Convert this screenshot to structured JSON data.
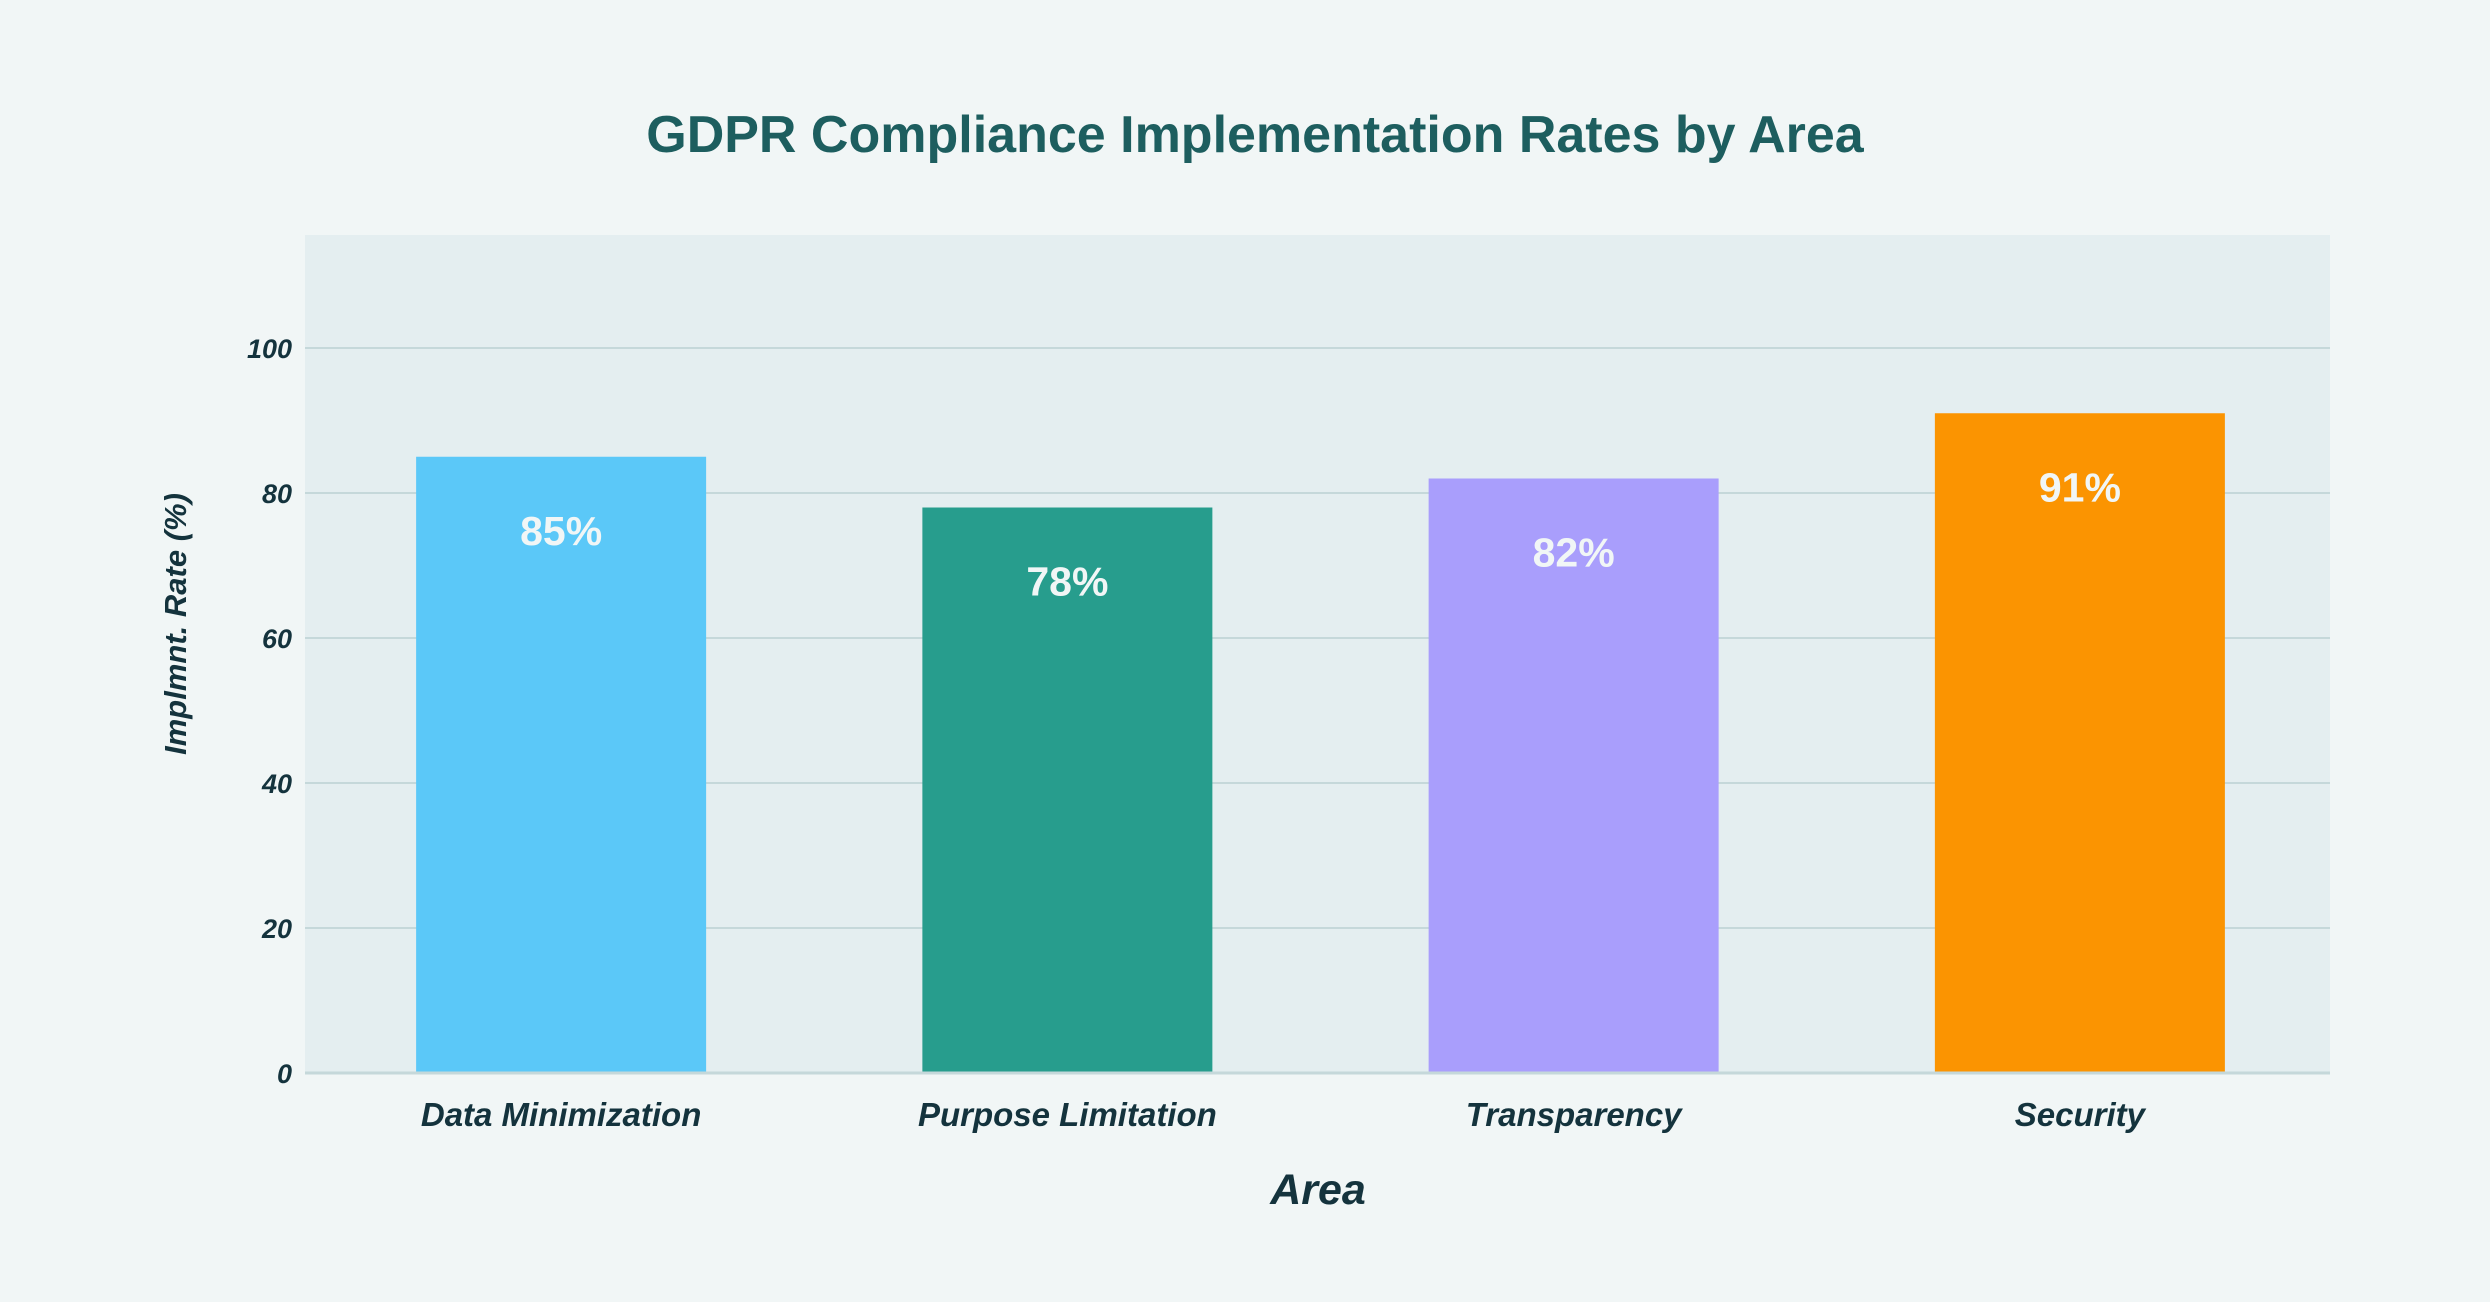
{
  "chart_data": {
    "type": "bar",
    "title": "GDPR Compliance Implementation Rates by Area",
    "xlabel": "Area",
    "ylabel": "Implmnt. Rate (%)",
    "categories": [
      "Data Minimization",
      "Purpose Limitation",
      "Transparency",
      "Security"
    ],
    "values": [
      85,
      78,
      82,
      91
    ],
    "value_labels": [
      "85%",
      "78%",
      "82%",
      "91%"
    ],
    "colors": [
      "#5bc8f8",
      "#279d8d",
      "#a99efc",
      "#fb9401"
    ],
    "yticks": [
      "0",
      "20",
      "40",
      "60",
      "80",
      "100"
    ],
    "ylim": [
      0,
      115
    ],
    "grid": true,
    "legend": "none"
  },
  "style": {
    "page_background": "#f1f6f6",
    "plot_background": "#e4eef0",
    "grid_color": "#c5d8da",
    "title_color": "#1d5e5f",
    "text_color": "#14333d",
    "bar_label_color": "#f1f6f6"
  }
}
